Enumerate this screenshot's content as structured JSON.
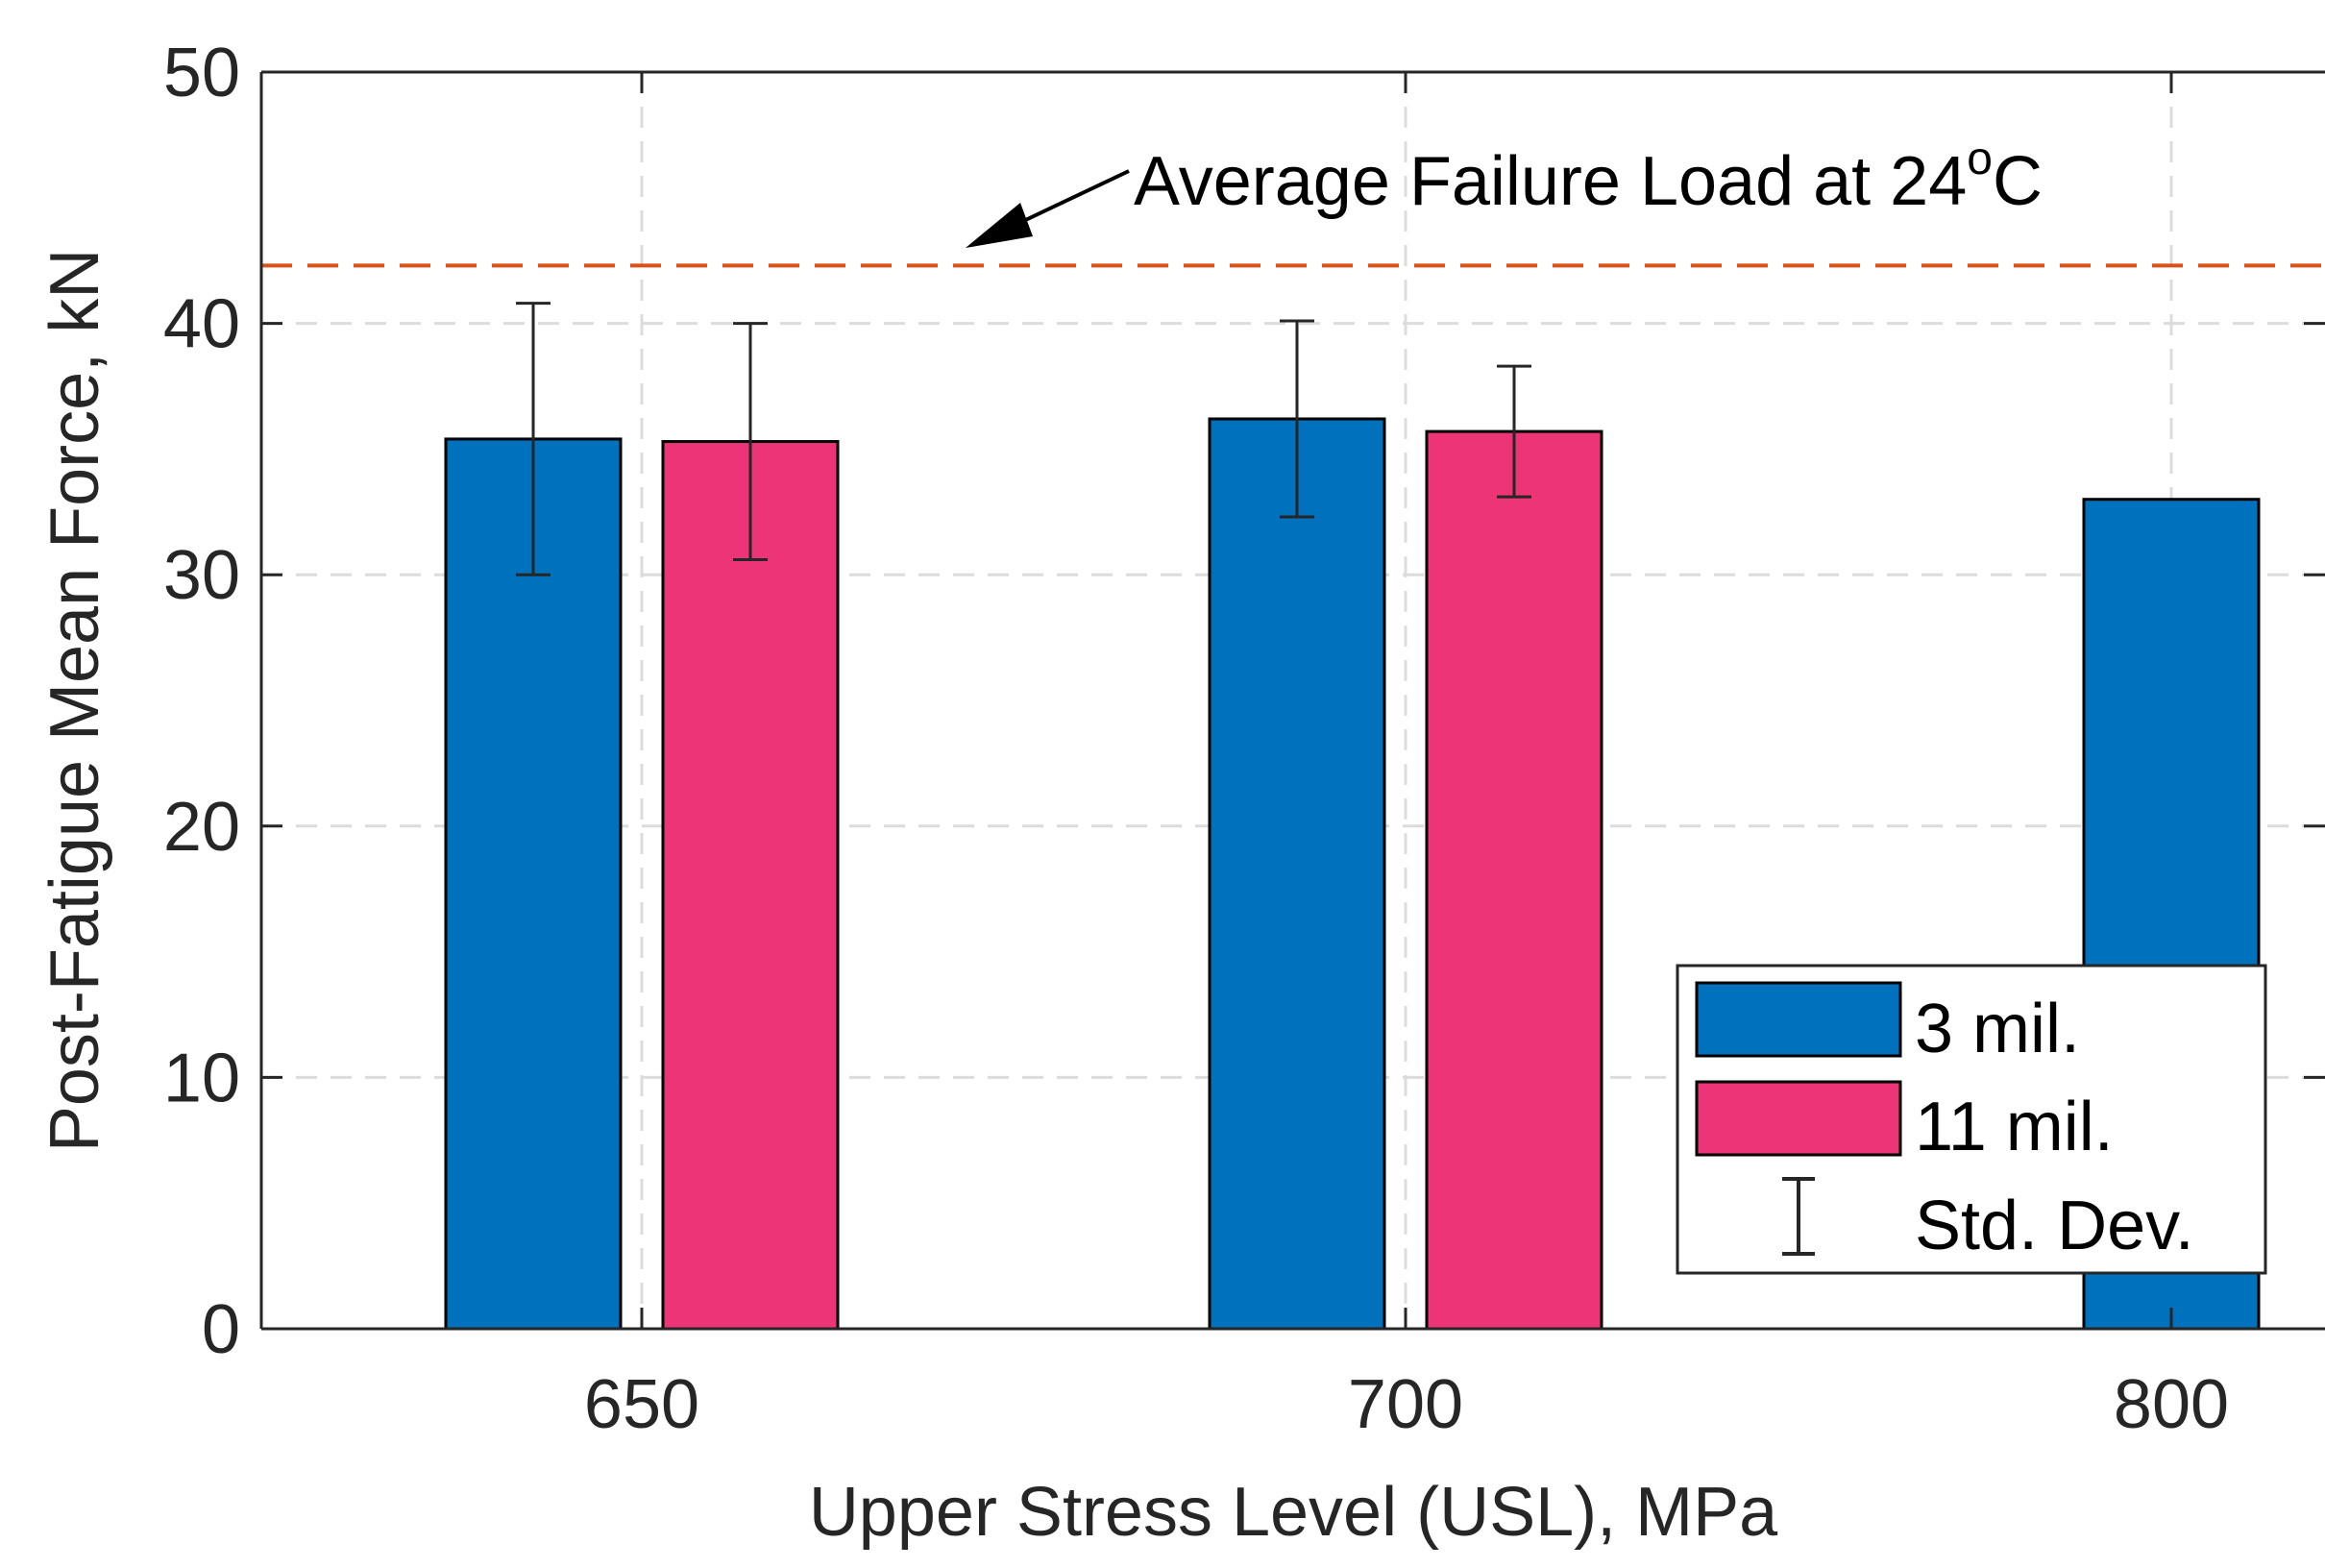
{
  "chart_data": {
    "type": "bar",
    "title": "",
    "xlabel": "Upper Stress Level (USL), MPa",
    "ylabel": "Post-Fatigue Mean Force, kN",
    "categories": [
      "650",
      "700",
      "800"
    ],
    "ylim": [
      0,
      50
    ],
    "yticks": [
      0,
      10,
      20,
      30,
      40,
      50
    ],
    "grid": true,
    "series": [
      {
        "name": "3 mil.",
        "color": "#0072BD",
        "values": [
          35.4,
          36.2,
          33.0
        ],
        "std": [
          5.4,
          3.9,
          null
        ]
      },
      {
        "name": "11 mil.",
        "color": "#EC3477",
        "values": [
          35.3,
          35.7,
          null
        ],
        "std": [
          4.7,
          2.6,
          null
        ]
      }
    ],
    "errorbar_legend": "Std. Dev.",
    "reference_line": {
      "value": 42.3,
      "color": "#D95319",
      "style": "dashed",
      "label_main": "Average Failure Load at 24",
      "label_sup": "o",
      "label_unit": "C"
    },
    "legend_position": "bottom-right"
  }
}
